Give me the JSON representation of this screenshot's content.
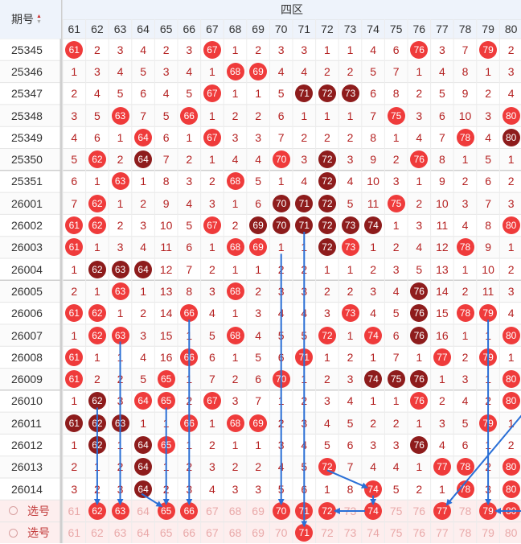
{
  "header": {
    "period_label": "期号",
    "sort_icon": "sort-up-down-icon",
    "zone_label": "四区",
    "columns": [
      "61",
      "62",
      "63",
      "64",
      "65",
      "66",
      "67",
      "68",
      "69",
      "70",
      "71",
      "72",
      "73",
      "74",
      "75",
      "76",
      "77",
      "78",
      "79",
      "80"
    ]
  },
  "colors": {
    "hit_red": "#ef3b3b",
    "repeat_dark": "#8e1c1c",
    "miss_text": "#b52222",
    "arrow_blue": "#2a6fd6",
    "select_row_bg": "#fdeeee"
  },
  "rows": [
    {
      "period": "25345",
      "cells": [
        "61",
        "2",
        "3",
        "4",
        "2",
        "3",
        "67",
        "1",
        "2",
        "3",
        "3",
        "1",
        "1",
        "4",
        "6",
        "76",
        "3",
        "7",
        "79",
        "2"
      ],
      "dark": []
    },
    {
      "period": "25346",
      "cells": [
        "1",
        "3",
        "4",
        "5",
        "3",
        "4",
        "1",
        "68",
        "69",
        "4",
        "4",
        "2",
        "2",
        "5",
        "7",
        "1",
        "4",
        "8",
        "1",
        "3"
      ],
      "dark": []
    },
    {
      "period": "25347",
      "cells": [
        "2",
        "4",
        "5",
        "6",
        "4",
        "5",
        "67",
        "1",
        "1",
        "5",
        "71",
        "72",
        "73",
        "6",
        "8",
        "2",
        "5",
        "9",
        "2",
        "4"
      ],
      "dark": [
        "71",
        "72",
        "73"
      ]
    },
    {
      "period": "25348",
      "cells": [
        "3",
        "5",
        "63",
        "7",
        "5",
        "66",
        "1",
        "2",
        "2",
        "6",
        "1",
        "1",
        "1",
        "7",
        "75",
        "3",
        "6",
        "10",
        "3",
        "80"
      ],
      "dark": []
    },
    {
      "period": "25349",
      "cells": [
        "4",
        "6",
        "1",
        "64",
        "6",
        "1",
        "67",
        "3",
        "3",
        "7",
        "2",
        "2",
        "2",
        "8",
        "1",
        "4",
        "7",
        "78",
        "4",
        "80"
      ],
      "dark": [
        "80"
      ]
    },
    {
      "period": "25350",
      "cells": [
        "5",
        "62",
        "2",
        "64",
        "7",
        "2",
        "1",
        "4",
        "4",
        "70",
        "3",
        "72",
        "3",
        "9",
        "2",
        "76",
        "8",
        "1",
        "5",
        "1"
      ],
      "dark": [
        "64",
        "72"
      ]
    },
    {
      "period": "25351",
      "cells": [
        "6",
        "1",
        "63",
        "1",
        "8",
        "3",
        "2",
        "68",
        "5",
        "1",
        "4",
        "72",
        "4",
        "10",
        "3",
        "1",
        "9",
        "2",
        "6",
        "2"
      ],
      "dark": [
        "72"
      ]
    },
    {
      "period": "26001",
      "cells": [
        "7",
        "62",
        "1",
        "2",
        "9",
        "4",
        "3",
        "1",
        "6",
        "70",
        "71",
        "72",
        "5",
        "11",
        "75",
        "2",
        "10",
        "3",
        "7",
        "3"
      ],
      "dark": [
        "70",
        "71",
        "72"
      ]
    },
    {
      "period": "26002",
      "cells": [
        "61",
        "62",
        "2",
        "3",
        "10",
        "5",
        "67",
        "2",
        "69",
        "70",
        "71",
        "72",
        "73",
        "74",
        "1",
        "3",
        "11",
        "4",
        "8",
        "80"
      ],
      "dark": [
        "69",
        "70",
        "71",
        "72",
        "73",
        "74"
      ]
    },
    {
      "period": "26003",
      "cells": [
        "61",
        "1",
        "3",
        "4",
        "11",
        "6",
        "1",
        "68",
        "69",
        "1",
        "1",
        "72",
        "73",
        "1",
        "2",
        "4",
        "12",
        "78",
        "9",
        "1"
      ],
      "dark": [
        "72"
      ]
    },
    {
      "period": "26004",
      "cells": [
        "1",
        "62",
        "63",
        "64",
        "12",
        "7",
        "2",
        "1",
        "1",
        "2",
        "2",
        "1",
        "1",
        "2",
        "3",
        "5",
        "13",
        "1",
        "10",
        "2"
      ],
      "dark": [
        "62",
        "63",
        "64"
      ]
    },
    {
      "period": "26005",
      "cells": [
        "2",
        "1",
        "63",
        "1",
        "13",
        "8",
        "3",
        "68",
        "2",
        "3",
        "3",
        "2",
        "2",
        "3",
        "4",
        "76",
        "14",
        "2",
        "11",
        "3"
      ],
      "dark": [
        "76"
      ]
    },
    {
      "period": "26006",
      "cells": [
        "61",
        "62",
        "1",
        "2",
        "14",
        "66",
        "4",
        "1",
        "3",
        "4",
        "4",
        "3",
        "73",
        "4",
        "5",
        "76",
        "15",
        "78",
        "79",
        "4"
      ],
      "dark": [
        "76"
      ]
    },
    {
      "period": "26007",
      "cells": [
        "1",
        "62",
        "63",
        "3",
        "15",
        "1",
        "5",
        "68",
        "4",
        "5",
        "5",
        "72",
        "1",
        "74",
        "6",
        "76",
        "16",
        "1",
        "1",
        "80"
      ],
      "dark": [
        "76"
      ]
    },
    {
      "period": "26008",
      "cells": [
        "61",
        "1",
        "1",
        "4",
        "16",
        "66",
        "6",
        "1",
        "5",
        "6",
        "71",
        "1",
        "2",
        "1",
        "7",
        "1",
        "77",
        "2",
        "79",
        "1"
      ],
      "dark": []
    },
    {
      "period": "26009",
      "cells": [
        "61",
        "2",
        "2",
        "5",
        "65",
        "1",
        "7",
        "2",
        "6",
        "70",
        "1",
        "2",
        "3",
        "74",
        "75",
        "76",
        "1",
        "3",
        "1",
        "80"
      ],
      "dark": [
        "74",
        "75",
        "76"
      ]
    },
    {
      "period": "26010",
      "cells": [
        "1",
        "62",
        "3",
        "64",
        "65",
        "2",
        "67",
        "3",
        "7",
        "1",
        "2",
        "3",
        "4",
        "1",
        "1",
        "76",
        "2",
        "4",
        "2",
        "80"
      ],
      "dark": [
        "62"
      ]
    },
    {
      "period": "26011",
      "cells": [
        "61",
        "62",
        "63",
        "1",
        "1",
        "66",
        "1",
        "68",
        "69",
        "2",
        "3",
        "4",
        "5",
        "2",
        "2",
        "1",
        "3",
        "5",
        "79",
        "1"
      ],
      "dark": [
        "61",
        "62",
        "63"
      ]
    },
    {
      "period": "26012",
      "cells": [
        "1",
        "62",
        "1",
        "64",
        "65",
        "1",
        "2",
        "1",
        "1",
        "3",
        "4",
        "5",
        "6",
        "3",
        "3",
        "76",
        "4",
        "6",
        "1",
        "2"
      ],
      "dark": [
        "62",
        "64",
        "76"
      ]
    },
    {
      "period": "26013",
      "cells": [
        "2",
        "1",
        "2",
        "64",
        "1",
        "2",
        "3",
        "2",
        "2",
        "4",
        "5",
        "72",
        "7",
        "4",
        "4",
        "1",
        "77",
        "78",
        "2",
        "80"
      ],
      "dark": [
        "64"
      ]
    },
    {
      "period": "26014",
      "cells": [
        "3",
        "2",
        "3",
        "64",
        "2",
        "3",
        "4",
        "3",
        "3",
        "5",
        "6",
        "1",
        "8",
        "74",
        "5",
        "2",
        "1",
        "78",
        "3",
        "80"
      ],
      "dark": [
        "64"
      ]
    }
  ],
  "select_rows": [
    {
      "label": "选号",
      "numbers": [
        "61",
        "62",
        "63",
        "64",
        "65",
        "66",
        "67",
        "68",
        "69",
        "70",
        "71",
        "72",
        "73",
        "74",
        "75",
        "76",
        "77",
        "78",
        "79",
        "80"
      ],
      "selected": [
        "62",
        "63",
        "65",
        "66",
        "70",
        "71",
        "72",
        "74",
        "77",
        "79",
        "80"
      ]
    },
    {
      "label": "选号",
      "numbers": [
        "61",
        "62",
        "63",
        "64",
        "65",
        "66",
        "67",
        "68",
        "69",
        "70",
        "71",
        "72",
        "73",
        "74",
        "75",
        "76",
        "77",
        "78",
        "79",
        "80"
      ],
      "selected": [
        "71"
      ]
    }
  ]
}
